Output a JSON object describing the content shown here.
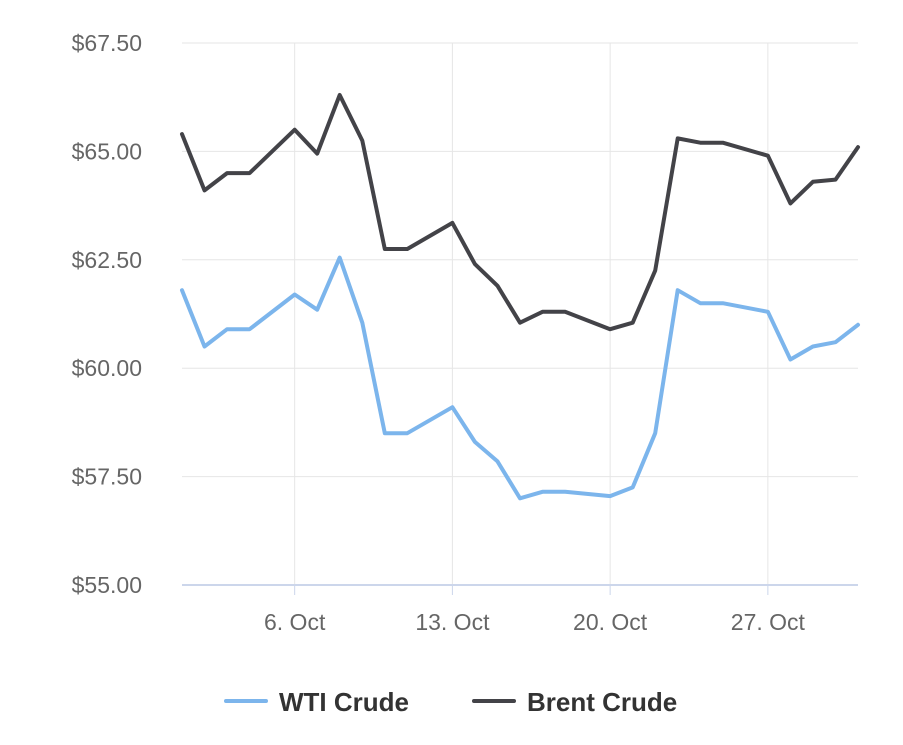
{
  "chart_data": {
    "type": "line",
    "title": "",
    "xlabel": "",
    "ylabel": "",
    "ylim": [
      55,
      67.5
    ],
    "yticks": [
      "$55.00",
      "$57.50",
      "$60.00",
      "$62.50",
      "$65.00",
      "$67.50"
    ],
    "ytick_values": [
      55,
      57.5,
      60,
      62.5,
      65,
      67.5
    ],
    "x_range": [
      "2025-10-01",
      "2025-10-31"
    ],
    "xticks": [
      {
        "date": "2025-10-06",
        "label": "6. Oct"
      },
      {
        "date": "2025-10-13",
        "label": "13. Oct"
      },
      {
        "date": "2025-10-20",
        "label": "20. Oct"
      },
      {
        "date": "2025-10-27",
        "label": "27. Oct"
      }
    ],
    "grid": true,
    "legend_position": "bottom-center",
    "x": [
      "2025-10-01",
      "2025-10-02",
      "2025-10-03",
      "2025-10-04",
      "2025-10-06",
      "2025-10-07",
      "2025-10-08",
      "2025-10-09",
      "2025-10-10",
      "2025-10-11",
      "2025-10-13",
      "2025-10-14",
      "2025-10-15",
      "2025-10-16",
      "2025-10-17",
      "2025-10-18",
      "2025-10-20",
      "2025-10-21",
      "2025-10-22",
      "2025-10-23",
      "2025-10-24",
      "2025-10-25",
      "2025-10-27",
      "2025-10-28",
      "2025-10-29",
      "2025-10-30",
      "2025-10-31"
    ],
    "series": [
      {
        "name": "WTI Crude",
        "color": "#7cb5ec",
        "values": [
          61.8,
          60.5,
          60.9,
          60.9,
          61.7,
          61.35,
          62.55,
          61.05,
          58.5,
          58.5,
          59.1,
          58.3,
          57.85,
          57.0,
          57.15,
          57.15,
          57.05,
          57.25,
          58.5,
          61.8,
          61.5,
          61.5,
          61.3,
          60.2,
          60.5,
          60.6,
          61.0
        ]
      },
      {
        "name": "Brent Crude",
        "color": "#434348",
        "values": [
          65.4,
          64.1,
          64.5,
          64.5,
          65.5,
          64.95,
          66.3,
          65.25,
          62.75,
          62.75,
          63.35,
          62.4,
          61.9,
          61.05,
          61.3,
          61.3,
          60.9,
          61.05,
          62.25,
          65.3,
          65.2,
          65.2,
          64.9,
          63.8,
          64.3,
          64.35,
          65.1
        ]
      }
    ]
  }
}
